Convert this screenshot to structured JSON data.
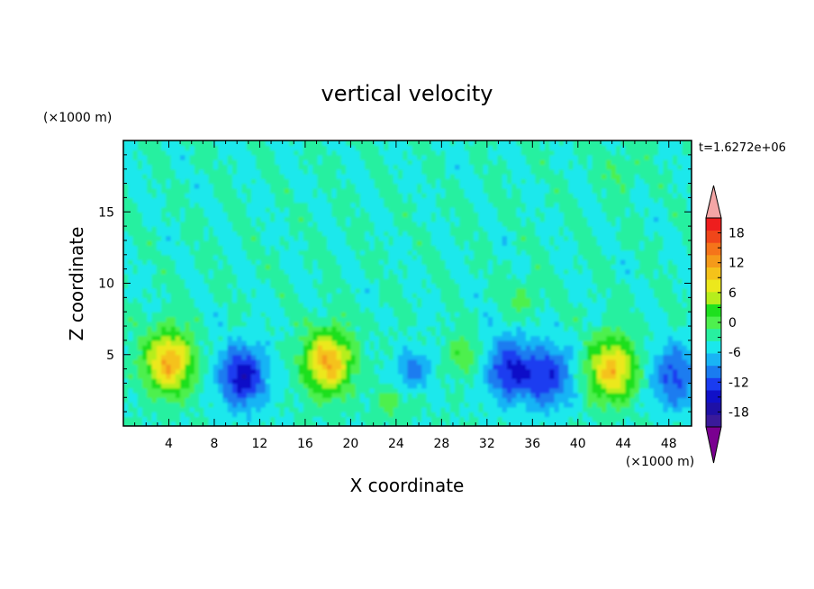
{
  "chart_data": {
    "type": "heatmap",
    "title": "vertical velocity",
    "xlabel": "X coordinate",
    "ylabel": "Z coordinate",
    "x_unit_label": "(×1000 m)",
    "y_unit_label": "(×1000 m)",
    "time_label": "t=1.6272e+06",
    "xlim": [
      0,
      50
    ],
    "ylim": [
      0,
      20
    ],
    "x_ticks": [
      4,
      8,
      12,
      16,
      20,
      24,
      28,
      32,
      36,
      40,
      44,
      48
    ],
    "y_ticks": [
      5,
      10,
      15
    ],
    "colorbar": {
      "min": -21,
      "max": 21,
      "step": 3,
      "tick_labels": [
        18,
        12,
        6,
        0,
        -6,
        -12,
        -18
      ],
      "extend": "both",
      "colors": [
        "#7a0090",
        "#3a1a9a",
        "#1e10a6",
        "#1010c8",
        "#1a3cf0",
        "#1a7cf0",
        "#19b4f5",
        "#1ae8ec",
        "#28f0a0",
        "#4ef04e",
        "#1ee01e",
        "#b6ee1c",
        "#ece81c",
        "#f5c21a",
        "#f59a1a",
        "#f5741a",
        "#f0461a",
        "#ee1e1e",
        "#f4a6a6"
      ]
    },
    "features": [
      {
        "x": 4.0,
        "z": 4.5,
        "w": 18
      },
      {
        "x": 10.5,
        "z": 3.5,
        "w": -14
      },
      {
        "x": 18.0,
        "z": 4.5,
        "w": 18
      },
      {
        "x": 25.5,
        "z": 4.0,
        "w": -8
      },
      {
        "x": 30.0,
        "z": 5.0,
        "w": 6
      },
      {
        "x": 34.0,
        "z": 4.0,
        "w": -12
      },
      {
        "x": 37.5,
        "z": 3.5,
        "w": -11
      },
      {
        "x": 43.0,
        "z": 4.0,
        "w": 17
      },
      {
        "x": 48.5,
        "z": 3.5,
        "w": -10
      },
      {
        "x": 23.5,
        "z": 1.5,
        "w": 4
      },
      {
        "x": 35.5,
        "z": 9.0,
        "w": 4
      },
      {
        "x": 44.0,
        "z": 18.0,
        "w": 4
      }
    ]
  }
}
